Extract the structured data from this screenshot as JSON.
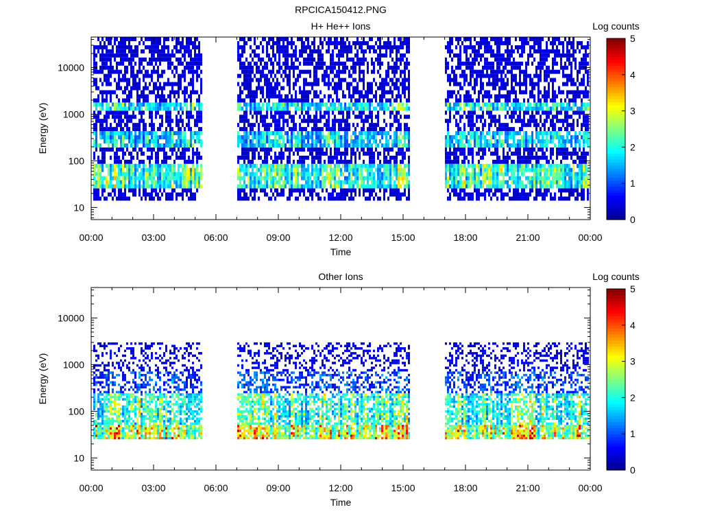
{
  "figure_title": "RPCICA150412.PNG",
  "chart_data": [
    {
      "type": "heatmap",
      "title": "H+ He++ Ions",
      "xlabel": "Time",
      "ylabel": "Energy (eV)",
      "x_ticks": [
        "00:00",
        "03:00",
        "06:00",
        "09:00",
        "12:00",
        "15:00",
        "18:00",
        "21:00",
        "00:00"
      ],
      "x_range_hours": [
        0,
        24
      ],
      "y_scale": "log",
      "y_range": [
        5.5,
        45000
      ],
      "y_ticks": [
        10,
        100,
        1000,
        10000
      ],
      "y_tick_labels": [
        "10",
        "100",
        "1000",
        "10000"
      ],
      "colorbar": {
        "title": "Log counts",
        "range": [
          0,
          5
        ],
        "ticks": [
          "0",
          "1",
          "2",
          "3",
          "4",
          "5"
        ]
      },
      "data_intervals_hours": [
        [
          0.1,
          5.35
        ],
        [
          7.05,
          15.3
        ],
        [
          17.0,
          24.0
        ]
      ],
      "bands": [
        {
          "energy_low": 25,
          "energy_high": 80,
          "log_counts": 2.6
        },
        {
          "energy_low": 200,
          "energy_high": 450,
          "log_counts": 2.1
        },
        {
          "energy_low": 1200,
          "energy_high": 1700,
          "log_counts": 2.3
        },
        {
          "energy_low": 14,
          "energy_high": 45000,
          "log_counts": 0.5
        }
      ]
    },
    {
      "type": "heatmap",
      "title": "Other Ions",
      "xlabel": "Time",
      "ylabel": "Energy (eV)",
      "x_ticks": [
        "00:00",
        "03:00",
        "06:00",
        "09:00",
        "12:00",
        "15:00",
        "18:00",
        "21:00",
        "00:00"
      ],
      "x_range_hours": [
        0,
        24
      ],
      "y_scale": "log",
      "y_range": [
        5.5,
        45000
      ],
      "y_ticks": [
        10,
        100,
        1000,
        10000
      ],
      "y_tick_labels": [
        "10",
        "100",
        "1000",
        "10000"
      ],
      "colorbar": {
        "title": "Log counts",
        "range": [
          0,
          5
        ],
        "ticks": [
          "0",
          "1",
          "2",
          "3",
          "4",
          "5"
        ]
      },
      "data_intervals_hours": [
        [
          0.1,
          5.35
        ],
        [
          7.05,
          15.3
        ],
        [
          17.0,
          24.0
        ]
      ],
      "bands": [
        {
          "energy_low": 25,
          "energy_high": 50,
          "log_counts": 3.6
        },
        {
          "energy_low": 50,
          "energy_high": 250,
          "log_counts": 2.6
        },
        {
          "energy_low": 250,
          "energy_high": 700,
          "log_counts": 1.2
        },
        {
          "energy_low": 700,
          "energy_high": 3000,
          "log_counts": 0.6
        }
      ]
    }
  ],
  "colors": {
    "colormap": [
      "#00008f",
      "#0000ff",
      "#007fff",
      "#00ffff",
      "#7fff7f",
      "#ffff00",
      "#ff7f00",
      "#ff0000",
      "#7f0000"
    ],
    "axis": "#000000",
    "background": "#ffffff"
  }
}
